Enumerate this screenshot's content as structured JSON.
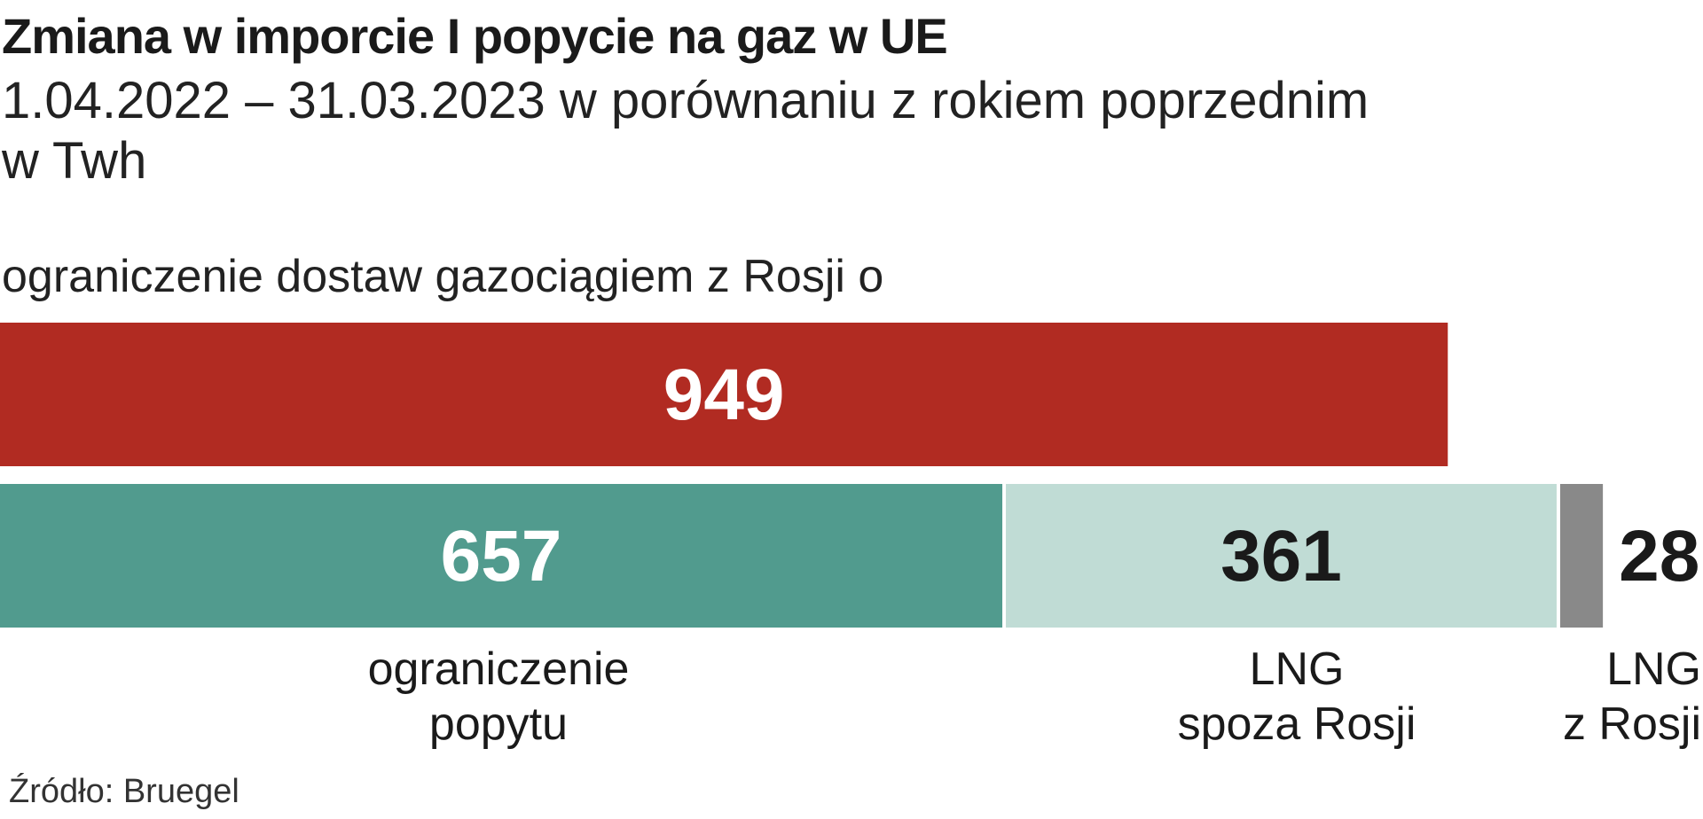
{
  "title": "Zmiana w imporcie I popycie na gaz w UE",
  "subtitle_line1": "1.04.2022 – 31.03.2023 w porównaniu z rokiem poprzednim",
  "subtitle_line2": "w Twh",
  "top_bar_label": "ograniczenie dostaw gazociągiem z Rosji o",
  "source": "Źródło: Bruegel",
  "chart_data": {
    "type": "bar",
    "orientation": "horizontal",
    "rows": [
      {
        "segments": [
          {
            "name": "",
            "value": 949,
            "label": "949",
            "color": "#b12b22",
            "label_color": "#ffffff",
            "caption": []
          }
        ]
      },
      {
        "segments": [
          {
            "name": "ograniczenie popytu",
            "value": 657,
            "label": "657",
            "color": "#519b8e",
            "label_color": "#ffffff",
            "caption": [
              "ograniczenie",
              "popytu"
            ]
          },
          {
            "name": "LNG spoza Rosji",
            "value": 361,
            "label": "361",
            "color": "#c0dcd5",
            "label_color": "#1a1a1a",
            "caption": [
              "LNG",
              "spoza Rosji"
            ]
          },
          {
            "name": "LNG z Rosji",
            "value": 28,
            "label": "28",
            "color": "#898989",
            "label_color": "#1a1a1a",
            "caption": [
              "LNG",
              "z Rosji"
            ]
          }
        ]
      }
    ],
    "grid": false,
    "legend": "none"
  }
}
